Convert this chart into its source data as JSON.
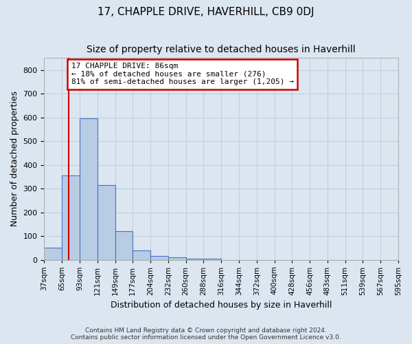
{
  "title": "17, CHAPPLE DRIVE, HAVERHILL, CB9 0DJ",
  "subtitle": "Size of property relative to detached houses in Haverhill",
  "xlabel": "Distribution of detached houses by size in Haverhill",
  "ylabel": "Number of detached properties",
  "footer_line1": "Contains HM Land Registry data © Crown copyright and database right 2024.",
  "footer_line2": "Contains public sector information licensed under the Open Government Licence v3.0.",
  "bin_labels": [
    "37sqm",
    "65sqm",
    "93sqm",
    "121sqm",
    "149sqm",
    "177sqm",
    "204sqm",
    "232sqm",
    "260sqm",
    "288sqm",
    "316sqm",
    "344sqm",
    "372sqm",
    "400sqm",
    "428sqm",
    "456sqm",
    "483sqm",
    "511sqm",
    "539sqm",
    "567sqm",
    "595sqm"
  ],
  "bar_values": [
    50,
    355,
    595,
    315,
    120,
    40,
    15,
    10,
    5,
    5,
    0,
    0,
    0,
    0,
    0,
    0,
    0,
    0,
    0,
    0
  ],
  "bar_color": "#b8cce4",
  "bar_edge_color": "#4472c4",
  "property_line_bin_idx": 1.38,
  "annotation_text": "17 CHAPPLE DRIVE: 86sqm\n← 18% of detached houses are smaller (276)\n81% of semi-detached houses are larger (1,205) →",
  "annotation_box_color": "#ffffff",
  "annotation_box_edge": "#cc0000",
  "vline_color": "#cc0000",
  "ylim": [
    0,
    850
  ],
  "yticks": [
    0,
    100,
    200,
    300,
    400,
    500,
    600,
    700,
    800
  ],
  "grid_color": "#c0cfe0",
  "background_color": "#dce6f1",
  "plot_bg_color": "#dce6f1",
  "title_fontsize": 11,
  "subtitle_fontsize": 10,
  "label_fontsize": 9
}
